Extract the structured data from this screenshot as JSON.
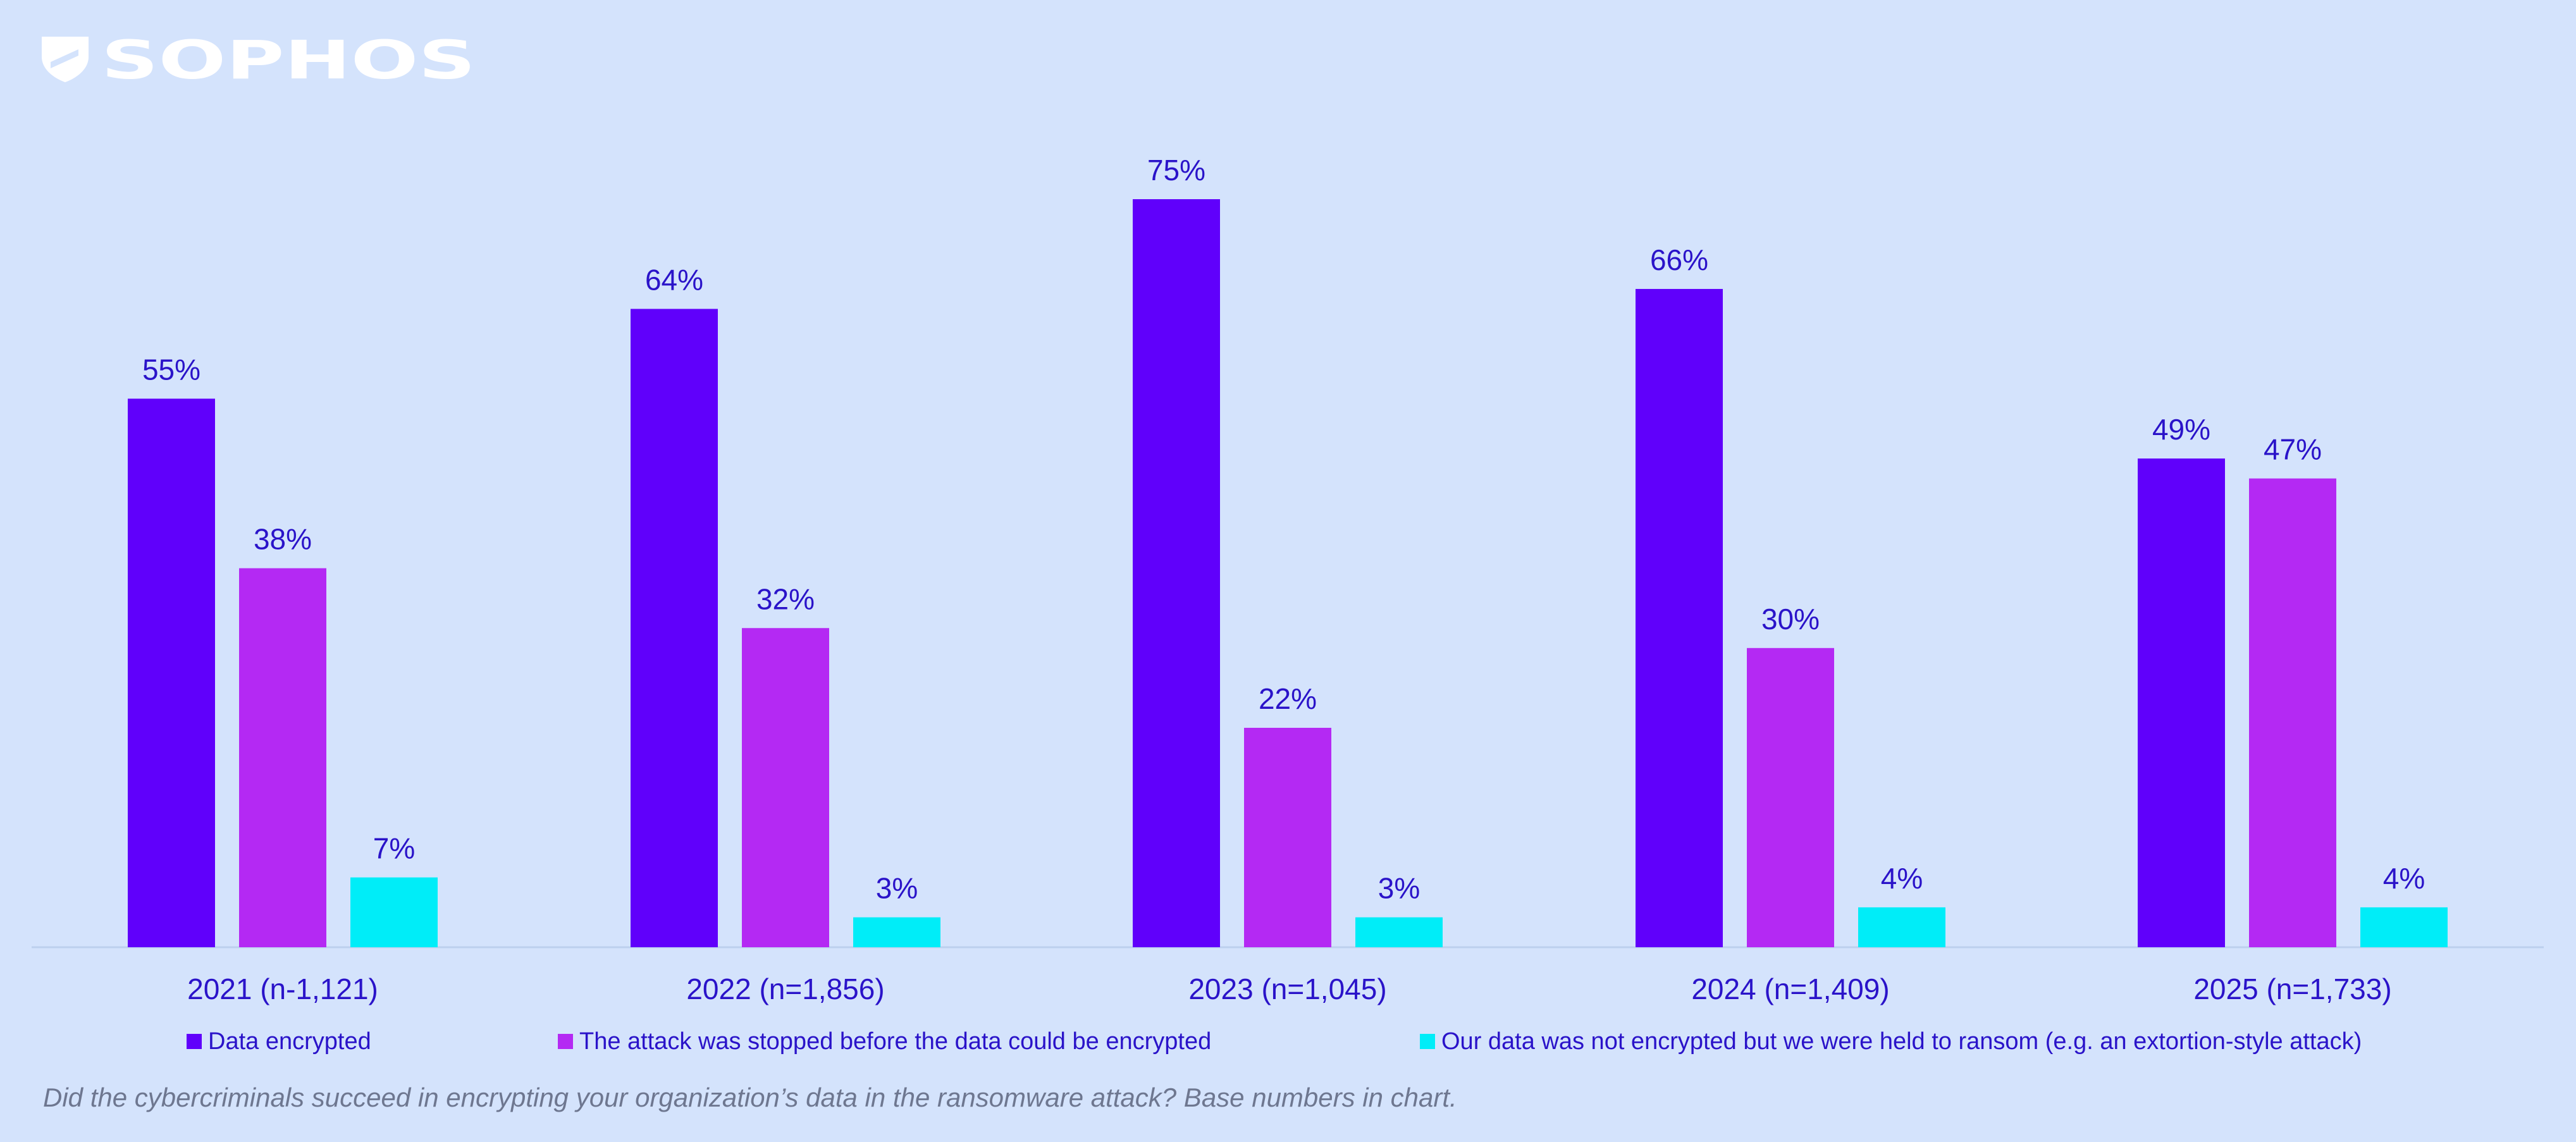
{
  "brand": {
    "name": "SOPHOS",
    "color": "#ffffff"
  },
  "caption": "Did the cybercriminals succeed in encrypting your organization’s data in the ransomware attack?  Base numbers in chart.",
  "chart_data": {
    "type": "bar",
    "title": "",
    "xlabel": "",
    "ylabel": "",
    "ylim": [
      0,
      75
    ],
    "grid": false,
    "legend_position": "bottom",
    "value_suffix": "%",
    "categories": [
      "2021 (n-1,121)",
      "2022 (n=1,856)",
      "2023 (n=1,045)",
      "2024 (n=1,409)",
      "2025 (n=1,733)"
    ],
    "series": [
      {
        "name": "Data encrypted",
        "color": "#6000fb",
        "values": [
          55,
          64,
          75,
          66,
          49
        ]
      },
      {
        "name": "The attack was stopped before the data could be encrypted",
        "color": "#b429f3",
        "values": [
          38,
          32,
          22,
          30,
          47
        ]
      },
      {
        "name": "Our data was not encrypted but we were held to ransom (e.g. an extortion-style attack)",
        "color": "#00edf8",
        "values": [
          7,
          3,
          3,
          4,
          4
        ]
      }
    ]
  }
}
